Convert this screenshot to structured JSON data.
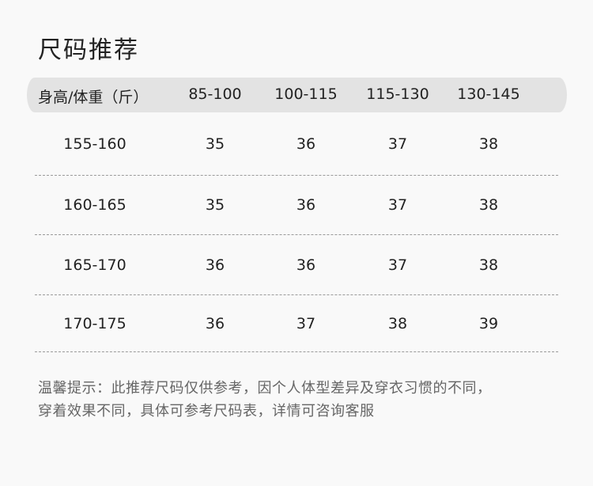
{
  "title": "尺码推荐",
  "table": {
    "headers": [
      "身高/体重（斤）",
      "85-100",
      "100-115",
      "115-130",
      "130-145"
    ],
    "rows": [
      [
        "155-160",
        "35",
        "36",
        "37",
        "38"
      ],
      [
        "160-165",
        "35",
        "36",
        "37",
        "38"
      ],
      [
        "165-170",
        "36",
        "36",
        "37",
        "38"
      ],
      [
        "170-175",
        "36",
        "37",
        "38",
        "39"
      ]
    ]
  },
  "note": {
    "line1": "温馨提示：此推荐尺码仅供参考，因个人体型差异及穿衣习惯的不同，",
    "line2": "穿着效果不同，具体可参考尺码表，详情可咨询客服"
  },
  "colors": {
    "background": "#f9f9f9",
    "header_bg": "#e3e3e3",
    "note_text": "#666666"
  }
}
